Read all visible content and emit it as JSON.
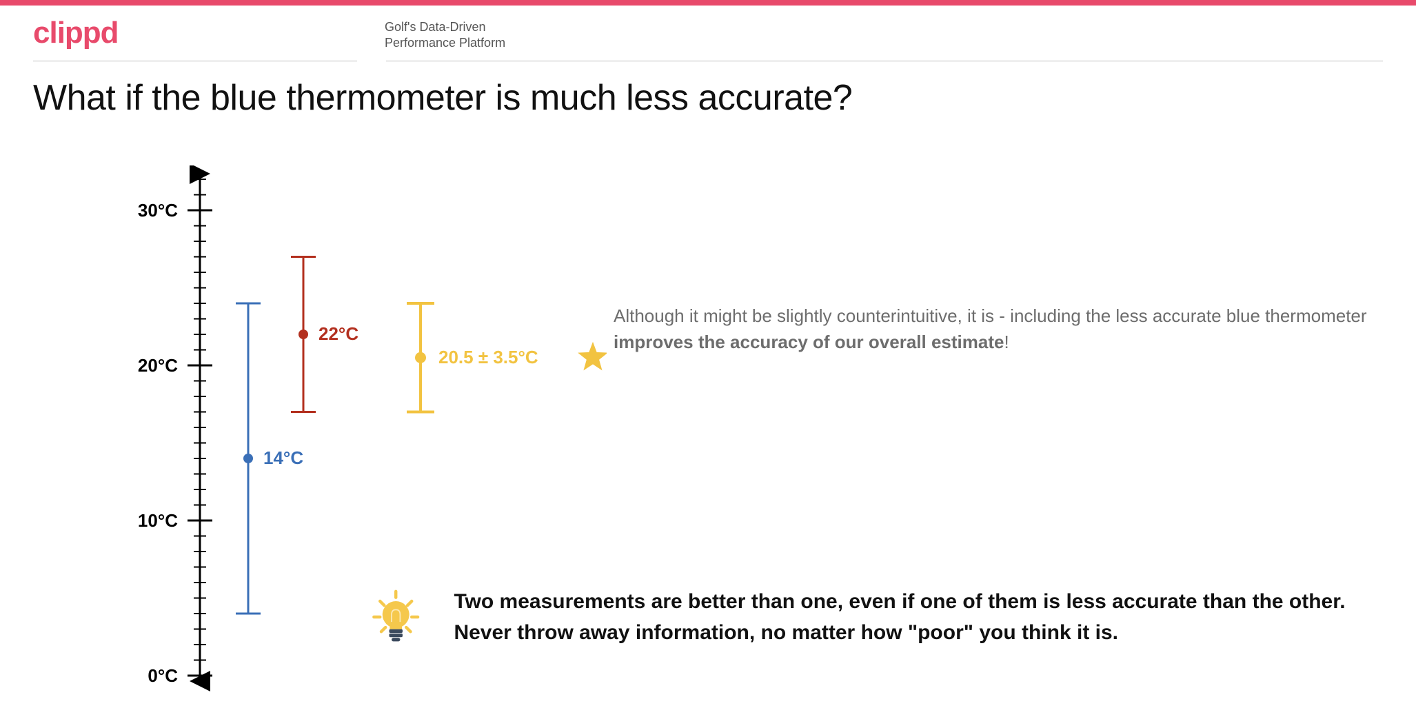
{
  "brand": {
    "name": "clippd",
    "color": "#e84a6b"
  },
  "tagline_line1": "Golf's Data-Driven",
  "tagline_line2": "Performance Platform",
  "topbar_color": "#e84a6b",
  "title": "What if the blue thermometer is much less accurate?",
  "axis": {
    "min": 0,
    "max": 32,
    "line_color": "#000000",
    "line_width": 3,
    "major_ticks": [
      {
        "value": 0,
        "label": "0°C"
      },
      {
        "value": 10,
        "label": "10°C"
      },
      {
        "value": 20,
        "label": "20°C"
      },
      {
        "value": 30,
        "label": "30°C"
      }
    ],
    "minor_step": 1,
    "major_tick_len": 18,
    "minor_tick_len": 9,
    "label_fontsize": 26,
    "label_fontweight": 700,
    "label_color": "#000000"
  },
  "series": [
    {
      "id": "blue",
      "x_offset": 70,
      "mean": 14,
      "err": 10,
      "color": "#3a6fb7",
      "line_width": 3,
      "dot_r": 7,
      "cap_w": 18,
      "label": "14°C",
      "label_fontsize": 26,
      "label_fontweight": 700,
      "label_dx": 22,
      "label_dy": 8
    },
    {
      "id": "red",
      "x_offset": 150,
      "mean": 22,
      "err": 5,
      "color": "#b3301f",
      "line_width": 3,
      "dot_r": 7,
      "cap_w": 18,
      "label": "22°C",
      "label_fontsize": 26,
      "label_fontweight": 700,
      "label_dx": 22,
      "label_dy": 8
    },
    {
      "id": "combined",
      "x_offset": 320,
      "mean": 20.5,
      "err": 3.5,
      "color": "#f2c341",
      "line_width": 4,
      "dot_r": 8,
      "cap_w": 20,
      "label": "20.5 ± 3.5°C",
      "label_fontsize": 26,
      "label_fontweight": 700,
      "label_dx": 26,
      "label_dy": 8
    }
  ],
  "star": {
    "color": "#f2c341",
    "size": 46
  },
  "explain_html": "Although it might be slightly counterintuitive, it is - including the less accurate blue thermometer <b>improves the accuracy of our overall estimate</b>!",
  "bulb": {
    "bulb_color": "#f5c84c",
    "base_color": "#3b4a5e",
    "ray_color": "#f5c84c",
    "size": 150
  },
  "takeaway": "Two measurements are better than one, even if one of them is less accurate than the other. Never throw away information, no matter how \"poor\" you think it is."
}
